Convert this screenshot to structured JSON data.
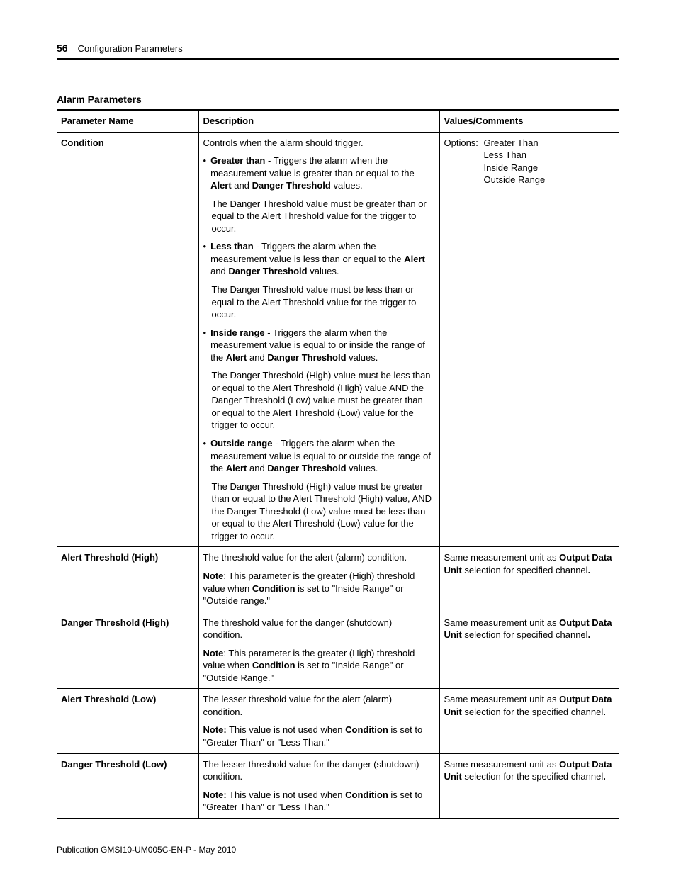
{
  "header": {
    "page_number": "56",
    "section_title": "Configuration Parameters"
  },
  "table_caption": "Alarm Parameters",
  "columns": {
    "param": "Parameter Name",
    "desc": "Description",
    "values": "Values/Comments"
  },
  "rows": {
    "condition": {
      "name": "Condition",
      "desc_intro": "Controls when the alarm should trigger.",
      "b1_lead": "Greater than",
      "b1_tail": " - Triggers the alarm when the measurement value is greater than or equal to the ",
      "b1_bold2a": "Alert",
      "b1_mid": " and ",
      "b1_bold2b": "Danger Threshold",
      "b1_end": " values.",
      "b1_note": "The Danger Threshold value must be greater than or equal to the Alert Threshold value for the trigger to occur.",
      "b2_lead": "Less than",
      "b2_tail": " - Triggers the alarm when the measurement value is less than or equal to the ",
      "b2_bold2a": "Alert",
      "b2_mid": " and ",
      "b2_bold2b": "Danger Threshold",
      "b2_end": " values.",
      "b2_note": "The Danger Threshold value must be less than or equal to the Alert Threshold value for the trigger to occur.",
      "b3_lead": "Inside range",
      "b3_tail": " - Triggers the alarm when the measurement value is equal to or inside the range of the ",
      "b3_bold2a": "Alert",
      "b3_mid": " and ",
      "b3_bold2b": "Danger Threshold",
      "b3_end": " values.",
      "b3_note": "The Danger Threshold (High) value must be less than or equal to the Alert Threshold (High) value AND the Danger Threshold (Low) value must be greater than or equal to the Alert Threshold (Low) value for the trigger to occur.",
      "b4_lead": "Outside range",
      "b4_tail": " - Triggers the alarm when the measurement value is equal to or outside the range of the ",
      "b4_bold2a": "Alert",
      "b4_mid": " and ",
      "b4_bold2b": "Danger Threshold",
      "b4_end": " values.",
      "b4_note": "The Danger Threshold (High) value must be greater than or equal to the Alert Threshold (High) value, AND the Danger Threshold (Low) value must be less than or equal to the Alert Threshold (Low) value for the trigger to occur.",
      "opts_label": "Options:",
      "opt1": "Greater Than",
      "opt2": "Less Than",
      "opt3": "Inside Range",
      "opt4": "Outside Range"
    },
    "alert_high": {
      "name": "Alert Threshold (High)",
      "p1": "The threshold value for the alert (alarm) condition.",
      "note_lead": "Note",
      "note_tail1": ": This parameter is the greater (High) threshold value when ",
      "note_bold": "Condition",
      "note_tail2": " is set to \"Inside Range\" or \"Outside range.\"",
      "val_pre": "Same measurement unit as ",
      "val_bold": "Output Data Unit",
      "val_post": " selection for specified channel",
      "val_dot": "."
    },
    "danger_high": {
      "name": "Danger Threshold (High)",
      "p1": "The threshold value for the danger (shutdown) condition.",
      "note_lead": "Note",
      "note_tail1": ": This parameter is the greater (High) threshold value when ",
      "note_bold": "Condition",
      "note_tail2": " is set to \"Inside Range\" or \"Outside Range.\"",
      "val_pre": "Same measurement unit as ",
      "val_bold": "Output Data Unit",
      "val_post": " selection for specified channel",
      "val_dot": "."
    },
    "alert_low": {
      "name": "Alert Threshold (Low)",
      "p1": "The lesser threshold value for the alert (alarm) condition.",
      "note_lead": "Note:",
      "note_tail1": " This value is not used when ",
      "note_bold": "Condition",
      "note_tail2": " is set to \"Greater Than\" or \"Less Than.\"",
      "val_pre": "Same measurement unit as ",
      "val_bold": "Output Data Unit",
      "val_post": " selection for the specified channel",
      "val_dot": "."
    },
    "danger_low": {
      "name": "Danger Threshold (Low)",
      "p1": "The lesser threshold value for the danger (shutdown) condition.",
      "note_lead": "Note:",
      "note_tail1": " This value is not used when ",
      "note_bold": "Condition",
      "note_tail2": " is set to \"Greater Than\" or \"Less Than.\"",
      "val_pre": "Same measurement unit as ",
      "val_bold": "Output Data Unit",
      "val_post": " selection for the specified channel",
      "val_dot": "."
    }
  },
  "footer": "Publication GMSI10-UM005C-EN-P - May 2010"
}
